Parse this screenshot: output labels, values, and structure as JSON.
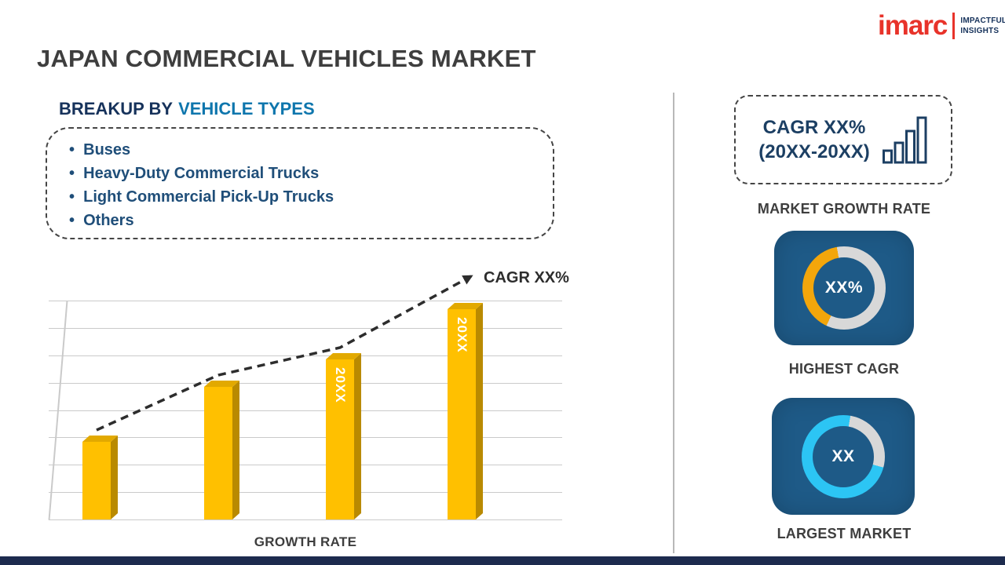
{
  "header": {
    "title": "JAPAN COMMERCIAL VEHICLES MARKET"
  },
  "logo": {
    "brand": "imarc",
    "tagline_line1": "IMPACTFUL",
    "tagline_line2": "INSIGHTS",
    "brand_color": "#E8332A",
    "tagline_color": "#16325B"
  },
  "breakup": {
    "label_prefix": "BREAKUP BY",
    "label_highlight": "VEHICLE TYPES",
    "items": [
      "Buses",
      "Heavy-Duty Commercial Trucks",
      "Light Commercial Pick-Up Trucks",
      "Others"
    ]
  },
  "chart_data": {
    "type": "bar",
    "categories": [
      "",
      "",
      "20XX",
      "20XX"
    ],
    "bar_labels": [
      "",
      "",
      "20XX",
      "20XX"
    ],
    "values": [
      37,
      63,
      76,
      100
    ],
    "values_unit": "percent of tallest bar (no y-axis values shown)",
    "title": "",
    "xlabel": "GROWTH RATE",
    "ylabel": "",
    "annotation": "CAGR XX%",
    "bar_color": "#FFC000",
    "trend": "rising dashed arrow across bar tops",
    "grid": true,
    "legend": false
  },
  "sidebar": {
    "growth_box": {
      "line1": "CAGR XX%",
      "line2": "(20XX-20XX)"
    },
    "growth_label": "MARKET GROWTH RATE",
    "highest_cagr": {
      "value": "XX%",
      "label": "HIGHEST CAGR",
      "accent_color": "#F3A60B"
    },
    "largest_market": {
      "value": "XX",
      "label": "LARGEST MARKET",
      "accent_color": "#2CC5F4"
    },
    "tile_color": "#1E5A87",
    "ring_base_color": "#D8D8D8"
  }
}
